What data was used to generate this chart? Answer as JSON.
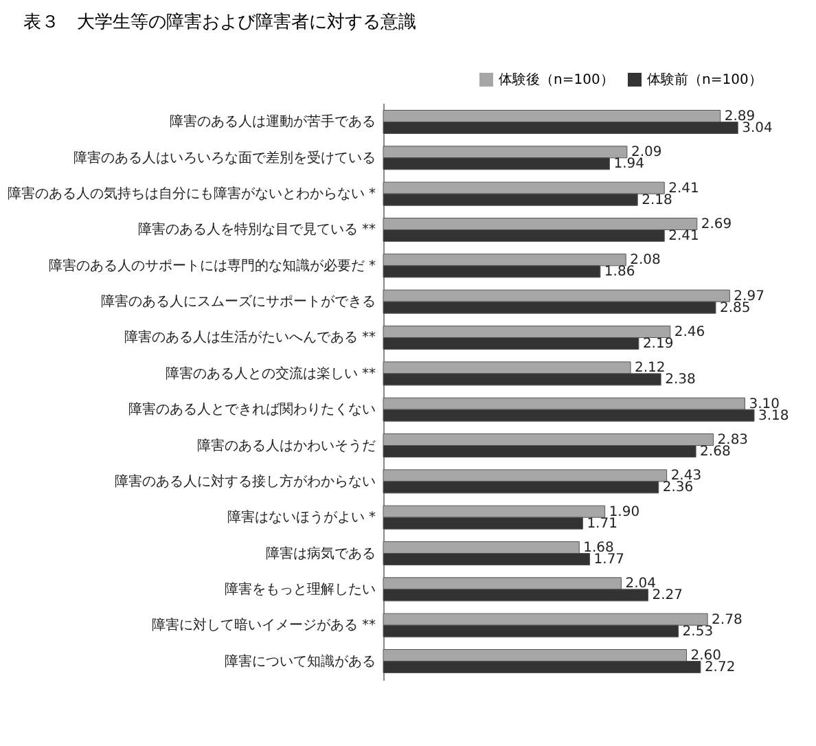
{
  "chart_data": {
    "type": "bar",
    "orientation": "horizontal",
    "title": "表３　大学生等の障害および障害者に対する意識",
    "categories": [
      "障害のある人は運動が苦手である",
      "障害のある人はいろいろな面で差別を受けている",
      "障害のある人の気持ちは自分にも障害がないとわからない *",
      "障害のある人を特別な目で見ている **",
      "障害のある人のサポートには専門的な知識が必要だ *",
      "障害のある人にスムーズにサポートができる",
      "障害のある人は生活がたいへんである **",
      "障害のある人との交流は楽しい **",
      "障害のある人とできれば関わりたくない",
      "障害のある人はかわいそうだ",
      "障害のある人に対する接し方がわからない",
      "障害はないほうがよい *",
      "障害は病気である",
      "障害をもっと理解したい",
      "障害に対して暗いイメージがある **",
      "障害について知識がある"
    ],
    "series": [
      {
        "name": "体験後（n=100）",
        "color": "#a6a6a6",
        "values": [
          2.89,
          2.09,
          2.41,
          2.69,
          2.08,
          2.97,
          2.46,
          2.12,
          3.1,
          2.83,
          2.43,
          1.9,
          1.68,
          2.04,
          2.78,
          2.6
        ],
        "value_labels": [
          "2.89",
          "2.09",
          "2.41",
          "2.69",
          "2.08",
          "2.97",
          "2.46",
          "2.12",
          "3.10",
          "2.83",
          "2.43",
          "1.90",
          "1.68",
          "2.04",
          "2.78",
          "2.60"
        ]
      },
      {
        "name": "体験前（n=100）",
        "color": "#333333",
        "values": [
          3.04,
          1.94,
          2.18,
          2.41,
          1.86,
          2.85,
          2.19,
          2.38,
          3.18,
          2.68,
          2.36,
          1.71,
          1.77,
          2.27,
          2.53,
          2.72
        ],
        "value_labels": [
          "3.04",
          "1.94",
          "2.18",
          "2.41",
          "1.86",
          "2.85",
          "2.19",
          "2.38",
          "3.18",
          "2.68",
          "2.36",
          "1.71",
          "1.77",
          "2.27",
          "2.53",
          "2.72"
        ]
      }
    ],
    "legend": "top right",
    "grid": false
  }
}
